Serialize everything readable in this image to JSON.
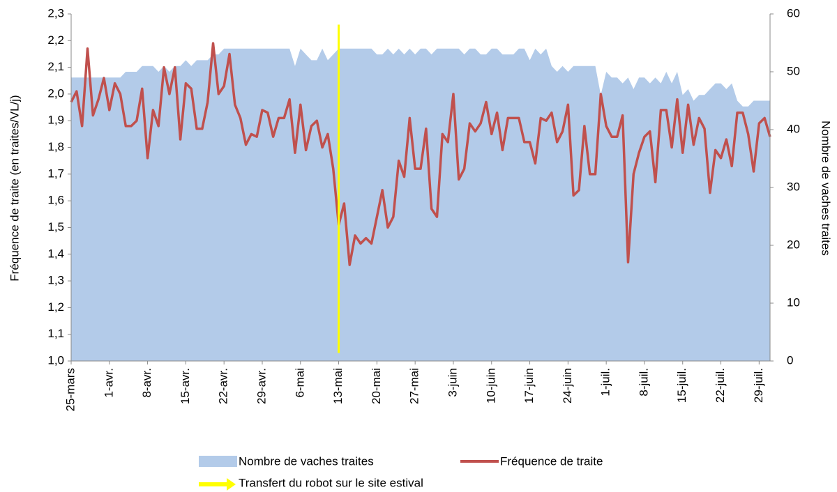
{
  "chart_data": {
    "type": "area-line",
    "y_label": "Fréquence de traite (en traites/VL/j)",
    "y2_label": "Nombre de vaches traites",
    "categories": [
      "25-mars",
      null,
      null,
      null,
      null,
      null,
      null,
      "1-avr.",
      null,
      null,
      null,
      null,
      null,
      null,
      "8-avr.",
      null,
      null,
      null,
      null,
      null,
      null,
      "15-avr.",
      null,
      null,
      null,
      null,
      null,
      null,
      "22-avr.",
      null,
      null,
      null,
      null,
      null,
      null,
      "29-avr.",
      null,
      null,
      null,
      null,
      null,
      null,
      "6-mai",
      null,
      null,
      null,
      null,
      null,
      null,
      "13-mai",
      null,
      null,
      null,
      null,
      null,
      null,
      "20-mai",
      null,
      null,
      null,
      null,
      null,
      null,
      "27-mai",
      null,
      null,
      null,
      null,
      null,
      null,
      "3-juin",
      null,
      null,
      null,
      null,
      null,
      null,
      "10-juin",
      null,
      null,
      null,
      null,
      null,
      null,
      "17-juin",
      null,
      null,
      null,
      null,
      null,
      null,
      "24-juin",
      null,
      null,
      null,
      null,
      null,
      null,
      "1-juil.",
      null,
      null,
      null,
      null,
      null,
      null,
      "8-juil.",
      null,
      null,
      null,
      null,
      null,
      null,
      "15-juil.",
      null,
      null,
      null,
      null,
      null,
      null,
      "22-juil.",
      null,
      null,
      null,
      null,
      null,
      null,
      "29-juil.",
      null,
      null
    ],
    "series": [
      {
        "name": "Nombre de vaches traites",
        "kind": "area",
        "axis": "y2",
        "color": "#b3cbe9",
        "values": [
          49,
          49,
          49,
          49,
          49,
          49,
          49,
          49,
          49,
          49,
          50,
          50,
          50,
          51,
          51,
          51,
          50,
          51,
          50,
          51,
          51,
          52,
          51,
          52,
          52,
          52,
          53,
          53,
          54,
          54,
          54,
          54,
          54,
          54,
          54,
          54,
          54,
          54,
          54,
          54,
          54,
          51,
          54,
          53,
          52,
          52,
          54,
          52,
          53,
          54,
          54,
          54,
          54,
          54,
          54,
          54,
          53,
          53,
          54,
          53,
          54,
          53,
          54,
          53,
          54,
          54,
          53,
          54,
          54,
          54,
          54,
          54,
          53,
          54,
          54,
          53,
          53,
          54,
          54,
          53,
          53,
          53,
          54,
          54,
          52,
          54,
          53,
          54,
          51,
          50,
          51,
          50,
          51,
          51,
          51,
          51,
          51,
          46,
          50,
          49,
          49,
          48,
          49,
          47,
          49,
          49,
          48,
          49,
          48,
          50,
          48,
          50,
          46,
          47,
          45,
          46,
          46,
          47,
          48,
          48,
          47,
          48,
          45,
          44,
          44,
          45,
          45,
          45,
          45
        ]
      },
      {
        "name": "Fréquence de traite",
        "kind": "line",
        "axis": "y",
        "color": "#c0504d",
        "values": [
          1.97,
          2.01,
          1.88,
          2.17,
          1.92,
          1.98,
          2.06,
          1.94,
          2.04,
          2.0,
          1.88,
          1.88,
          1.9,
          2.02,
          1.76,
          1.94,
          1.88,
          2.1,
          2.0,
          2.1,
          1.83,
          2.04,
          2.02,
          1.87,
          1.87,
          1.97,
          2.19,
          2.0,
          2.03,
          2.15,
          1.96,
          1.91,
          1.81,
          1.85,
          1.84,
          1.94,
          1.93,
          1.84,
          1.91,
          1.91,
          1.98,
          1.78,
          1.96,
          1.79,
          1.88,
          1.9,
          1.8,
          1.85,
          1.72,
          1.51,
          1.59,
          1.36,
          1.47,
          1.44,
          1.46,
          1.44,
          1.54,
          1.64,
          1.5,
          1.54,
          1.75,
          1.69,
          1.91,
          1.72,
          1.72,
          1.87,
          1.57,
          1.54,
          1.85,
          1.82,
          2.0,
          1.68,
          1.72,
          1.89,
          1.86,
          1.89,
          1.97,
          1.85,
          1.93,
          1.79,
          1.91,
          1.91,
          1.91,
          1.82,
          1.82,
          1.74,
          1.91,
          1.9,
          1.93,
          1.82,
          1.86,
          1.96,
          1.62,
          1.64,
          1.88,
          1.7,
          1.7,
          2.0,
          1.88,
          1.84,
          1.84,
          1.92,
          1.37,
          1.7,
          1.78,
          1.84,
          1.86,
          1.67,
          1.94,
          1.94,
          1.8,
          1.98,
          1.78,
          1.96,
          1.81,
          1.91,
          1.87,
          1.63,
          1.79,
          1.76,
          1.83,
          1.73,
          1.93,
          1.93,
          1.85,
          1.71,
          1.89,
          1.91,
          1.84
        ]
      }
    ],
    "marker": {
      "name": "Transfert du robot sur le site estival",
      "color": "#ffff00",
      "x": 49,
      "yrange": [
        1.03,
        2.26
      ]
    },
    "ylim": [
      1.0,
      2.3
    ],
    "yticks": [
      {
        "value": 1.0,
        "label": "1,0"
      },
      {
        "value": 1.1,
        "label": "1,1"
      },
      {
        "value": 1.2,
        "label": "1,2"
      },
      {
        "value": 1.3,
        "label": "1,3"
      },
      {
        "value": 1.4,
        "label": "1,4"
      },
      {
        "value": 1.5,
        "label": "1,5"
      },
      {
        "value": 1.6,
        "label": "1,6"
      },
      {
        "value": 1.7,
        "label": "1,7"
      },
      {
        "value": 1.8,
        "label": "1,8"
      },
      {
        "value": 1.9,
        "label": "1,9"
      },
      {
        "value": 2.0,
        "label": "2,0"
      },
      {
        "value": 2.1,
        "label": "2,1"
      },
      {
        "value": 2.2,
        "label": "2,2"
      },
      {
        "value": 2.3,
        "label": "2,3"
      }
    ],
    "y2lim": [
      0,
      60
    ],
    "y2ticks": [
      0,
      10,
      20,
      30,
      40,
      50,
      60
    ],
    "legend": "bottom"
  }
}
